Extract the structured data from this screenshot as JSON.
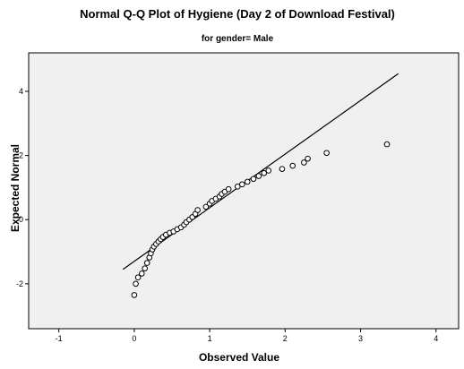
{
  "chart_data": {
    "type": "scatter",
    "title": "Normal Q-Q Plot of Hygiene (Day 2 of Download Festival)",
    "subtitle": "for gender= Male",
    "xlabel": "Observed Value",
    "ylabel": "Expected Normal",
    "xlim": [
      -1.4,
      4.3
    ],
    "ylim": [
      -3.4,
      5.2
    ],
    "xticks": [
      "-1",
      "0",
      "1",
      "2",
      "3",
      "4"
    ],
    "yticks": [
      "-2",
      "0",
      "2",
      "4"
    ],
    "grid": false,
    "reference_line": {
      "x": [
        -0.15,
        3.5
      ],
      "y": [
        -1.55,
        4.55
      ]
    },
    "points": [
      {
        "x": 0.0,
        "y": -2.35
      },
      {
        "x": 0.02,
        "y": -2.0
      },
      {
        "x": 0.05,
        "y": -1.8
      },
      {
        "x": 0.1,
        "y": -1.68
      },
      {
        "x": 0.14,
        "y": -1.52
      },
      {
        "x": 0.17,
        "y": -1.35
      },
      {
        "x": 0.2,
        "y": -1.18
      },
      {
        "x": 0.22,
        "y": -1.05
      },
      {
        "x": 0.24,
        "y": -0.93
      },
      {
        "x": 0.26,
        "y": -0.84
      },
      {
        "x": 0.29,
        "y": -0.76
      },
      {
        "x": 0.32,
        "y": -0.68
      },
      {
        "x": 0.35,
        "y": -0.61
      },
      {
        "x": 0.38,
        "y": -0.54
      },
      {
        "x": 0.42,
        "y": -0.47
      },
      {
        "x": 0.47,
        "y": -0.41
      },
      {
        "x": 0.52,
        "y": -0.37
      },
      {
        "x": 0.57,
        "y": -0.3
      },
      {
        "x": 0.62,
        "y": -0.24
      },
      {
        "x": 0.66,
        "y": -0.16
      },
      {
        "x": 0.69,
        "y": -0.08
      },
      {
        "x": 0.73,
        "y": 0.0
      },
      {
        "x": 0.77,
        "y": 0.08
      },
      {
        "x": 0.81,
        "y": 0.18
      },
      {
        "x": 0.84,
        "y": 0.3
      },
      {
        "x": 0.95,
        "y": 0.4
      },
      {
        "x": 1.0,
        "y": 0.5
      },
      {
        "x": 1.03,
        "y": 0.58
      },
      {
        "x": 1.08,
        "y": 0.65
      },
      {
        "x": 1.13,
        "y": 0.72
      },
      {
        "x": 1.16,
        "y": 0.8
      },
      {
        "x": 1.2,
        "y": 0.87
      },
      {
        "x": 1.25,
        "y": 0.95
      },
      {
        "x": 1.37,
        "y": 1.03
      },
      {
        "x": 1.43,
        "y": 1.1
      },
      {
        "x": 1.5,
        "y": 1.18
      },
      {
        "x": 1.58,
        "y": 1.27
      },
      {
        "x": 1.65,
        "y": 1.36
      },
      {
        "x": 1.72,
        "y": 1.45
      },
      {
        "x": 1.78,
        "y": 1.53
      },
      {
        "x": 1.96,
        "y": 1.58
      },
      {
        "x": 2.1,
        "y": 1.68
      },
      {
        "x": 2.25,
        "y": 1.78
      },
      {
        "x": 2.3,
        "y": 1.9
      },
      {
        "x": 2.55,
        "y": 2.08
      },
      {
        "x": 3.35,
        "y": 2.35
      }
    ]
  },
  "colors": {
    "plot_background": "#f0f0f0",
    "frame": "#000000",
    "line": "#000000",
    "marker_stroke": "#000000",
    "marker_fill": "#ffffff"
  }
}
